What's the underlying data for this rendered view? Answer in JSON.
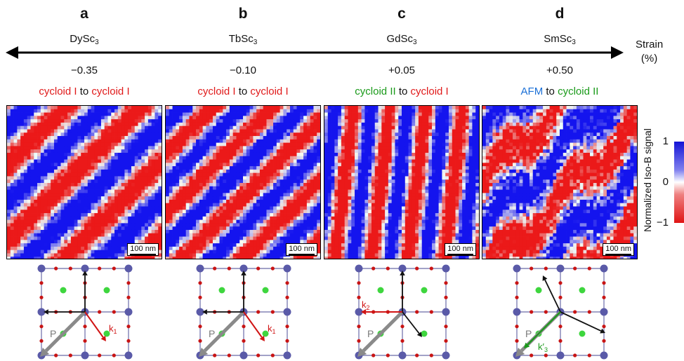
{
  "axis": {
    "label_line1": "Strain",
    "label_line2": "(%)"
  },
  "panels": [
    {
      "letter": "a",
      "substrate": "DySc",
      "sub": "3",
      "strain": "−0.35",
      "from": "cycloid I",
      "to_word": "to",
      "to": "cycloid I",
      "from_color": "#e01a1a",
      "to_color": "#e01a1a",
      "scale": "100 nm",
      "pattern": "diagonal-stripes",
      "k_label": "k",
      "k_sub": "1",
      "p_label": "P"
    },
    {
      "letter": "b",
      "substrate": "TbSc",
      "sub": "3",
      "strain": "−0.10",
      "from": "cycloid I",
      "to_word": "to",
      "to": "cycloid I",
      "from_color": "#e01a1a",
      "to_color": "#e01a1a",
      "scale": "100 nm",
      "pattern": "diagonal-stripes",
      "k_label": "k",
      "k_sub": "1",
      "p_label": "P"
    },
    {
      "letter": "c",
      "substrate": "GdSc",
      "sub": "3",
      "strain": "+0.05",
      "from": "cycloid II",
      "to_word": "to",
      "to": "cycloid I",
      "from_color": "#1a9a1a",
      "to_color": "#e01a1a",
      "scale": "100 nm",
      "pattern": "vertical-stripes",
      "k_label": "k",
      "k_sub": "2",
      "p_label": "P"
    },
    {
      "letter": "d",
      "substrate": "SmSc",
      "sub": "3",
      "strain": "+0.50",
      "from": "AFM",
      "to_word": "to",
      "to": "cycloid II",
      "from_color": "#1a6fd6",
      "to_color": "#1a9a1a",
      "scale": "100 nm",
      "pattern": "patchy-stripes",
      "k_label": "k′",
      "k_sub": "3",
      "p_label": "P"
    }
  ],
  "colorbar": {
    "title": "Normalized Iso-B signal",
    "ticks": [
      "1",
      "0",
      "−1"
    ],
    "high_color": "#1414d6",
    "mid_color": "#ffffff",
    "low_color": "#e01414"
  }
}
